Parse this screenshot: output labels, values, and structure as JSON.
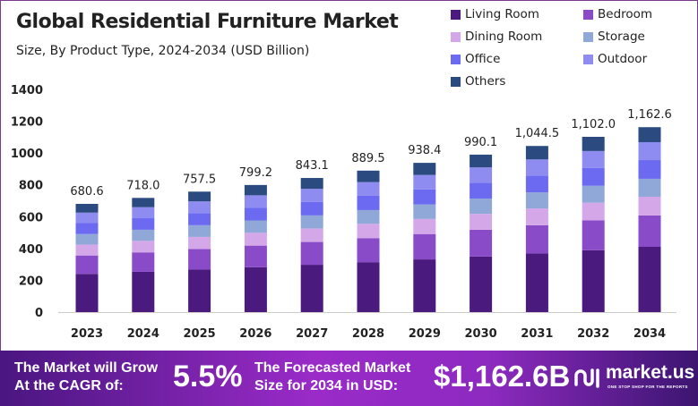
{
  "chart_data": {
    "type": "bar",
    "stacked": true,
    "title": "Global Residential  Furniture Market",
    "subtitle": "Size, By Product Type, 2024-2034 (USD Billion)",
    "categories": [
      "2023",
      "2024",
      "2025",
      "2026",
      "2027",
      "2028",
      "2029",
      "2030",
      "2031",
      "2032",
      "2034"
    ],
    "ylim": [
      0,
      1400
    ],
    "yticks": [
      0,
      200,
      400,
      600,
      800,
      1000,
      1200,
      1400
    ],
    "grid": false,
    "legend_position": "top-right",
    "totals": [
      "680.6",
      "718.0",
      "757.5",
      "799.2",
      "843.1",
      "889.5",
      "938.4",
      "990.1",
      "1,044.5",
      "1,102.0",
      "1,162.6"
    ],
    "series": [
      {
        "name": "Living Room",
        "color": "#4a1a7e",
        "values": [
          240.3,
          253.5,
          267.4,
          282.1,
          297.6,
          314.0,
          331.3,
          349.5,
          368.7,
          389.0,
          410.4
        ]
      },
      {
        "name": "Bedroom",
        "color": "#8a4bc8",
        "values": [
          115.7,
          122.1,
          128.8,
          135.9,
          143.3,
          151.2,
          159.5,
          168.3,
          177.6,
          187.3,
          197.6
        ]
      },
      {
        "name": "Dining Room",
        "color": "#d4a8e8",
        "values": [
          68.7,
          72.5,
          76.5,
          80.7,
          85.2,
          89.8,
          94.8,
          100.0,
          105.5,
          111.3,
          117.4
        ]
      },
      {
        "name": "Storage",
        "color": "#8fa8d8",
        "values": [
          66.0,
          69.6,
          73.5,
          77.5,
          81.8,
          86.3,
          91.0,
          96.0,
          101.3,
          106.9,
          112.8
        ]
      },
      {
        "name": "Office",
        "color": "#6b6af0",
        "values": [
          68.7,
          72.5,
          76.5,
          80.7,
          85.2,
          89.8,
          94.8,
          100.0,
          105.5,
          111.3,
          117.4
        ]
      },
      {
        "name": "Outdoor",
        "color": "#8e8cf0",
        "values": [
          66.0,
          69.6,
          73.5,
          77.5,
          81.8,
          86.3,
          91.0,
          96.0,
          101.3,
          106.9,
          112.8
        ]
      },
      {
        "name": "Others",
        "color": "#2a4a80",
        "values": [
          55.1,
          58.2,
          61.3,
          64.7,
          68.3,
          72.0,
          76.0,
          80.2,
          84.6,
          89.3,
          94.2
        ]
      }
    ]
  },
  "footer": {
    "cagr_label_1": "The Market will Grow",
    "cagr_label_2": "At the CAGR of:",
    "cagr_value": "5.5%",
    "forecast_label_1": "The Forecasted Market",
    "forecast_label_2": "Size for 2034 in USD:",
    "forecast_value": "$1,162.6B",
    "brand": "market.us",
    "brand_tagline": "ONE STOP SHOP FOR THE REPORTS"
  }
}
